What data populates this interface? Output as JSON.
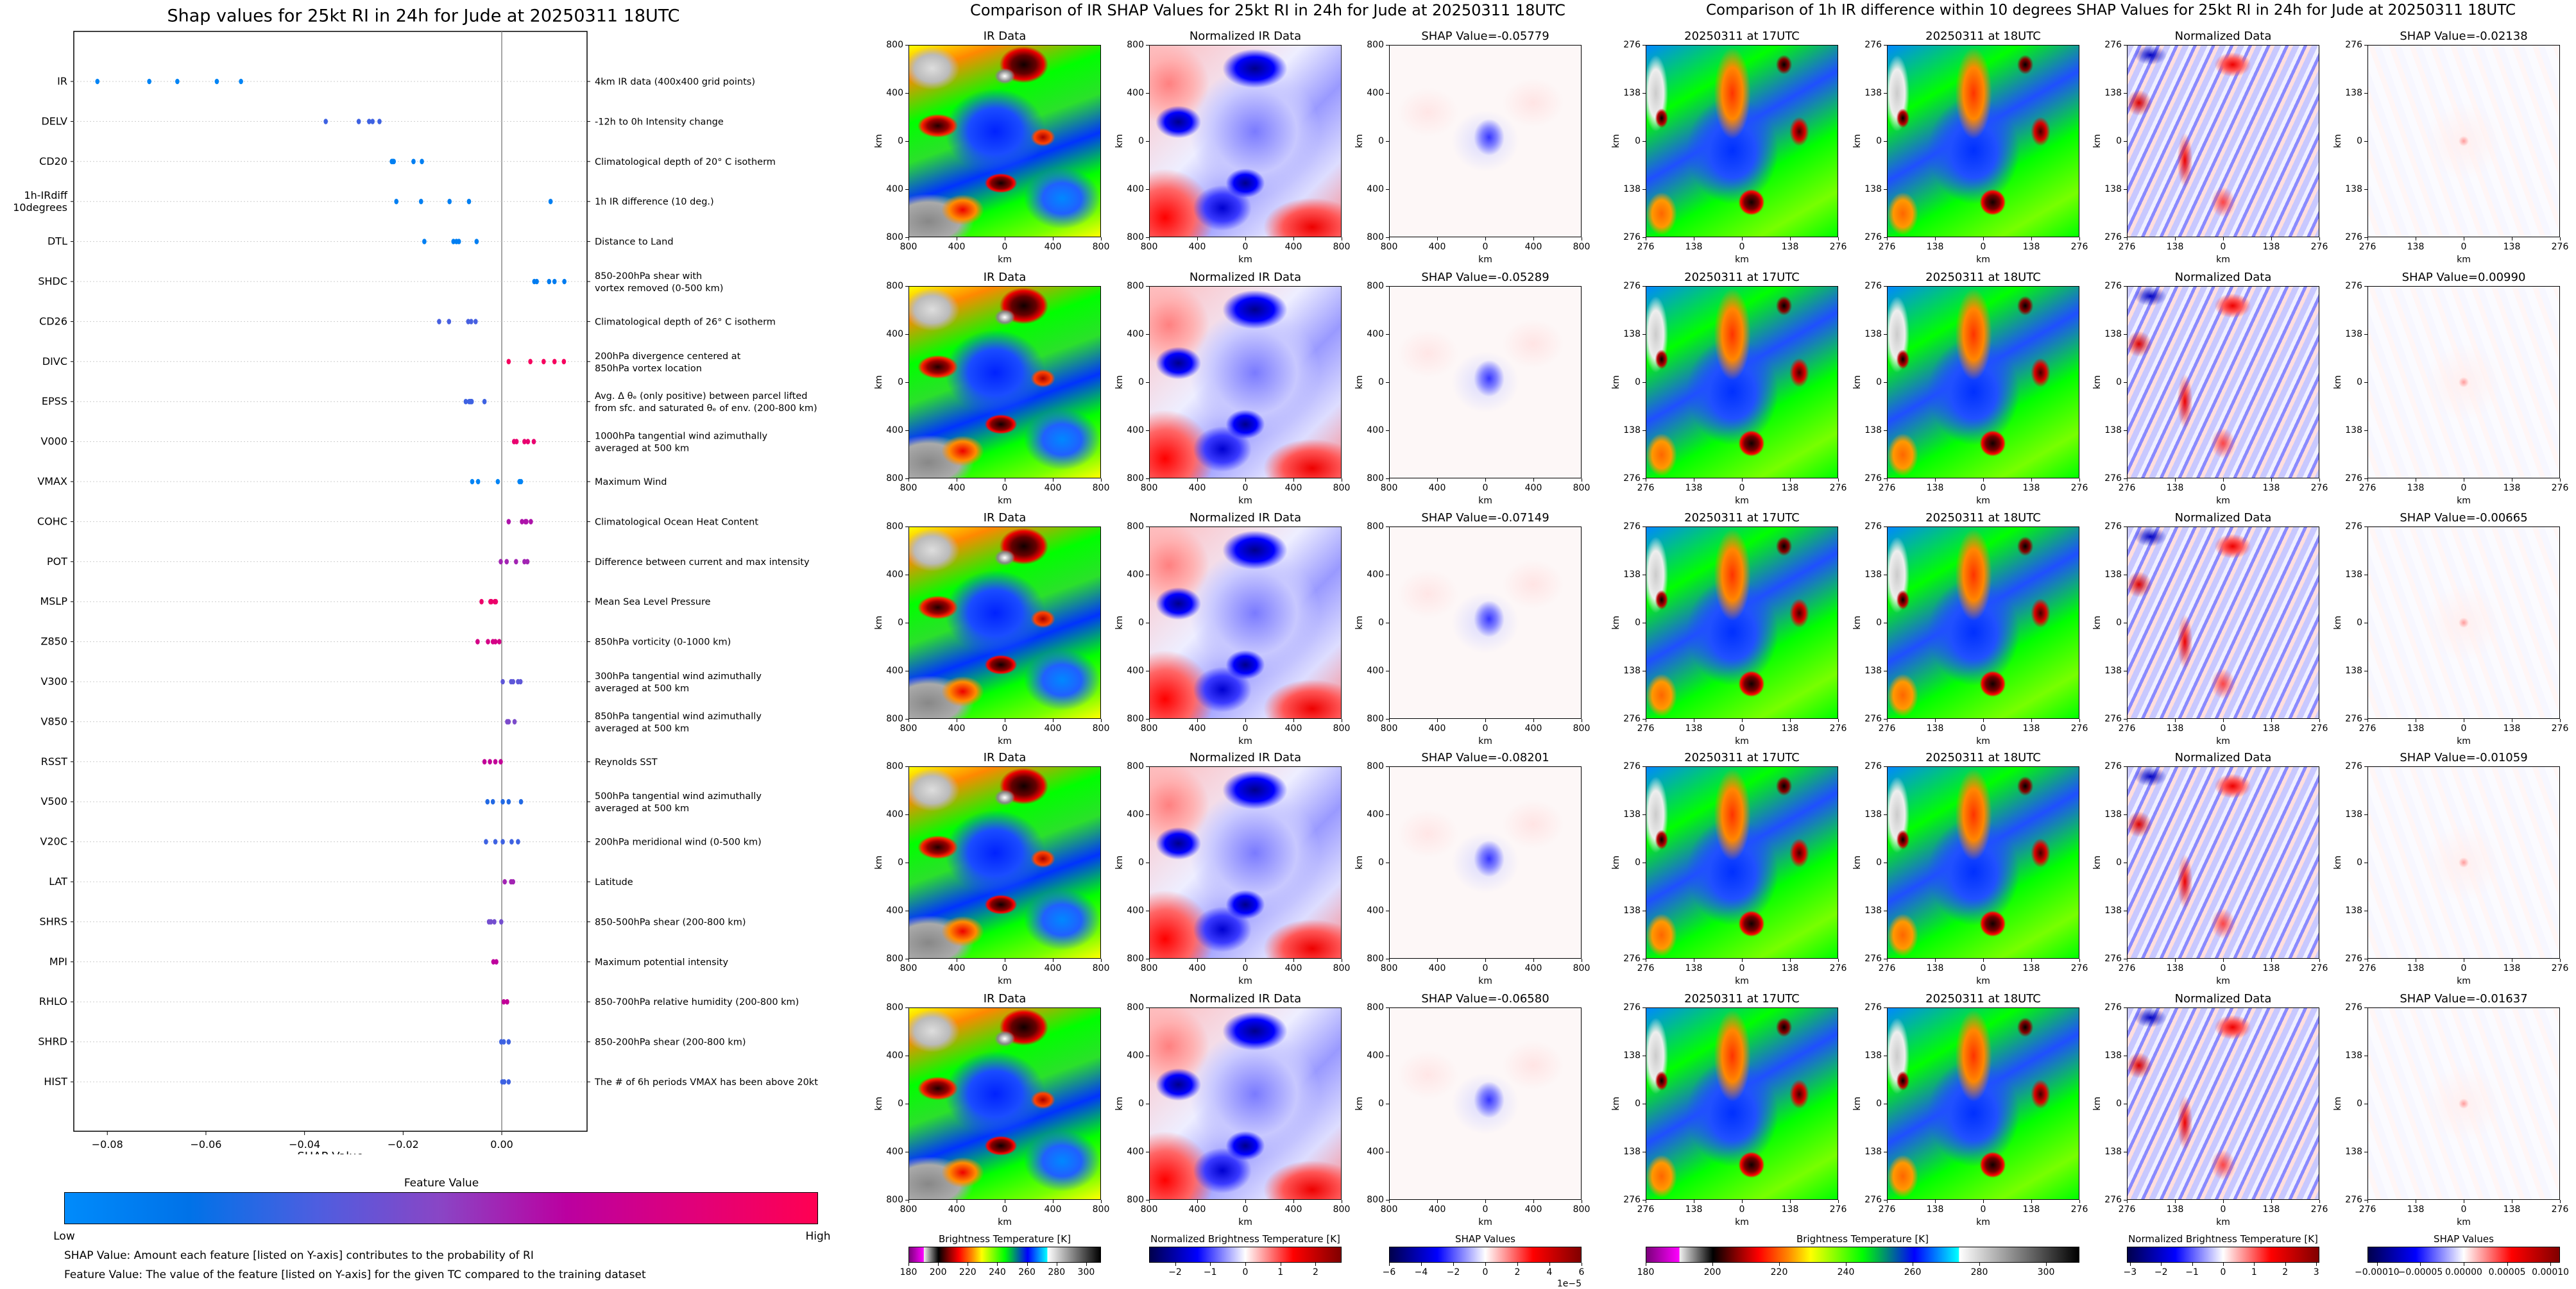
{
  "chart_data": [
    {
      "type": "scatter",
      "title": "Shap values for 25kt RI in 24h for Jude at 20250311 18UTC",
      "xlabel": "SHAP Value",
      "xlim": [
        -0.0868,
        0.0173
      ],
      "xticks": [
        -0.08,
        -0.06,
        -0.04,
        -0.02,
        0.0
      ],
      "xtick_labels": [
        "−0.08",
        "−0.06",
        "−0.04",
        "−0.02",
        "0.00"
      ],
      "zero_line": 0,
      "grid": "horizontal dotted",
      "colorbar": {
        "title": "Feature Value",
        "low": "Low",
        "high": "High",
        "colors": [
          "#008bfb",
          "#0072e8",
          "#4d5ee0",
          "#8a45c5",
          "#bb00a0",
          "#e0007a",
          "#ff0052"
        ]
      },
      "features": [
        {
          "name": "IR",
          "description": "4km IR data (400x400 grid points)",
          "feature_value": 0.05,
          "shap_values": [
            -0.05779,
            -0.05289,
            -0.07149,
            -0.08201,
            -0.0658
          ]
        },
        {
          "name": "DELV",
          "description": "-12h to 0h Intensity change",
          "feature_value": 0.3,
          "shap_values": [
            -0.0357,
            -0.029,
            -0.0269,
            -0.0262,
            -0.0248
          ]
        },
        {
          "name": "CD20",
          "description": "Climatological depth of 20° C isotherm",
          "feature_value": 0.08,
          "shap_values": [
            -0.0223,
            -0.0221,
            -0.0219,
            -0.0179,
            -0.0162
          ]
        },
        {
          "name": "1h-IRdiff\n10degrees",
          "description": "1h IR difference (10 deg.)",
          "feature_value": 0.08,
          "shap_values": [
            -0.02138,
            0.0099,
            -0.00665,
            -0.01059,
            -0.01637
          ]
        },
        {
          "name": "DTL",
          "description": "Distance to Land",
          "feature_value": 0.08,
          "shap_values": [
            -0.0157,
            -0.0098,
            -0.0092,
            -0.0087,
            -0.0051
          ]
        },
        {
          "name": "SHDC",
          "description": "850-200hPa shear with\nvortex removed (0-500 km)",
          "feature_value": 0.1,
          "shap_values": [
            0.0066,
            0.0071,
            0.0096,
            0.0107,
            0.0127
          ]
        },
        {
          "name": "CD26",
          "description": "Climatological depth of 26° C isotherm",
          "feature_value": 0.32,
          "shap_values": [
            -0.0127,
            -0.0107,
            -0.0068,
            -0.0062,
            -0.0053
          ]
        },
        {
          "name": "DIVC",
          "description": "200hPa divergence centered at\n850hPa vortex location",
          "feature_value": 0.95,
          "shap_values": [
            0.0014,
            0.0058,
            0.0085,
            0.0107,
            0.0126
          ]
        },
        {
          "name": "EPSS",
          "description": "Avg. Δ θₑ (only positive) between parcel lifted\nfrom sfc. and saturated θₑ of env. (200-800 km)",
          "feature_value": 0.3,
          "shap_values": [
            -0.0073,
            -0.0066,
            -0.0063,
            -0.0061,
            -0.0035
          ]
        },
        {
          "name": "V000",
          "description": "1000hPa tangential wind azimuthally\naveraged at 500 km",
          "feature_value": 0.88,
          "shap_values": [
            0.0025,
            0.003,
            0.0046,
            0.0053,
            0.0065
          ]
        },
        {
          "name": "VMAX",
          "description": "Maximum Wind",
          "feature_value": 0.05,
          "shap_values": [
            -0.006,
            -0.0048,
            -0.0008,
            0.0036,
            0.0039
          ]
        },
        {
          "name": "COHC",
          "description": "Climatological Ocean Heat Content",
          "feature_value": 0.62,
          "shap_values": [
            0.0014,
            0.0041,
            0.0048,
            0.005,
            0.0059
          ]
        },
        {
          "name": "POT",
          "description": "Difference between current and max intensity",
          "feature_value": 0.58,
          "shap_values": [
            -0.0002,
            0.001,
            0.0029,
            0.0046,
            0.0052
          ]
        },
        {
          "name": "MSLP",
          "description": "Mean Sea Level Pressure",
          "feature_value": 0.9,
          "shap_values": [
            -0.0041,
            -0.0023,
            -0.0021,
            -0.0014,
            -0.0012
          ]
        },
        {
          "name": "Z850",
          "description": "850hPa vorticity (0-1000 km)",
          "feature_value": 0.78,
          "shap_values": [
            -0.0049,
            -0.0028,
            -0.0018,
            -0.0013,
            -0.0005
          ]
        },
        {
          "name": "V300",
          "description": "300hPa tangential wind azimuthally\naveraged at 500 km",
          "feature_value": 0.38,
          "shap_values": [
            0.0002,
            0.0019,
            0.0023,
            0.0033,
            0.0038
          ]
        },
        {
          "name": "V850",
          "description": "850hPa tangential wind azimuthally\naveraged at 500 km",
          "feature_value": 0.46,
          "shap_values": [
            0.0011,
            0.0014,
            0.0026
          ]
        },
        {
          "name": "RSST",
          "description": "Reynolds SST",
          "feature_value": 0.7,
          "shap_values": [
            -0.0035,
            -0.0024,
            -0.0013,
            -0.0002
          ]
        },
        {
          "name": "V500",
          "description": "500hPa tangential wind azimuthally\naveraged at 500 km",
          "feature_value": 0.24,
          "shap_values": [
            -0.0029,
            -0.0018,
            0.0002,
            0.0014,
            0.0039
          ]
        },
        {
          "name": "V20C",
          "description": "200hPa meridional wind (0-500 km)",
          "feature_value": 0.3,
          "shap_values": [
            -0.0032,
            -0.0013,
            0.0002,
            0.002,
            0.0033
          ]
        },
        {
          "name": "LAT",
          "description": "Latitude",
          "feature_value": 0.58,
          "shap_values": [
            0.0006,
            0.0019,
            0.0023
          ]
        },
        {
          "name": "SHRS",
          "description": "850-500hPa shear (200-800 km)",
          "feature_value": 0.44,
          "shap_values": [
            -0.0026,
            -0.0022,
            -0.0015,
            -0.0001
          ]
        },
        {
          "name": "MPI",
          "description": "Maximum potential intensity",
          "feature_value": 0.68,
          "shap_values": [
            -0.0017,
            -0.0011
          ]
        },
        {
          "name": "RHLO",
          "description": "850-700hPa relative humidity (200-800 km)",
          "feature_value": 0.7,
          "shap_values": [
            0.0004,
            0.0011
          ]
        },
        {
          "name": "SHRD",
          "description": "850-200hPa shear (200-800 km)",
          "feature_value": 0.3,
          "shap_values": [
            -0.0001,
            0.0004,
            0.0014
          ]
        },
        {
          "name": "HIST",
          "description": "The # of 6h periods VMAX has been above 20kt",
          "feature_value": 0.3,
          "shap_values": [
            0.0001,
            0.0005,
            0.0014
          ]
        }
      ],
      "notes": [
        "SHAP Value: Amount each feature [listed on Y-axis] contributes to the probability of RI",
        "Feature Value: The value of the feature [listed on Y-axis] for the given TC compared to the training dataset"
      ]
    },
    {
      "type": "heatmap",
      "title": "Comparison of IR SHAP Values for 25kt RI in 24h for Jude at 20250311 18UTC",
      "xlabel": "km",
      "ylabel": "km",
      "axis_tick_labels": [
        "800",
        "400",
        "0",
        "400",
        "800"
      ],
      "columns": [
        {
          "title": "IR Data",
          "style": "ir"
        },
        {
          "title": "Normalized IR Data",
          "style": "norm"
        },
        {
          "title": "",
          "style": "shapm"
        }
      ],
      "shap_titles": [
        "SHAP Value=-0.05779",
        "SHAP Value=-0.05289",
        "SHAP Value=-0.07149",
        "SHAP Value=-0.08201",
        "SHAP Value=-0.06580"
      ],
      "colorbars": [
        {
          "label": "Brightness Temperature [K]",
          "range": [
            180,
            310
          ],
          "ticks": [
            180,
            200,
            220,
            240,
            260,
            280,
            300
          ],
          "tick_labels": [
            "180",
            "200",
            "220",
            "240",
            "260",
            "280",
            "300"
          ],
          "colormap": "brightness-temperature"
        },
        {
          "label": "Normalized Brightness Temperature [K]",
          "range": [
            -2.74,
            2.74
          ],
          "ticks": [
            -2,
            -1,
            0,
            1,
            2
          ],
          "tick_labels": [
            "−2",
            "−1",
            "0",
            "1",
            "2"
          ],
          "colormap": "seismic"
        },
        {
          "label": "SHAP Values",
          "range": [
            -6,
            6
          ],
          "ticks": [
            -6,
            -4,
            -2,
            0,
            2,
            4,
            6
          ],
          "tick_labels": [
            "−6",
            "−4",
            "−2",
            "0",
            "2",
            "4",
            "6"
          ],
          "offset_text": "1e−5",
          "colormap": "seismic"
        }
      ]
    },
    {
      "type": "heatmap",
      "title": "Comparison of 1h IR difference within 10 degrees SHAP Values for 25kt RI in 24h for Jude at 20250311 18UTC",
      "xlabel": "km",
      "ylabel": "km",
      "axis_tick_labels": [
        "276",
        "138",
        "0",
        "138",
        "276"
      ],
      "columns": [
        {
          "title": "20250311 at 17UTC",
          "style": "ir2"
        },
        {
          "title": "20250311 at 18UTC",
          "style": "ir2"
        },
        {
          "title": "Normalized Data",
          "style": "norm2"
        },
        {
          "title": "",
          "style": "shap2"
        }
      ],
      "shap_titles": [
        "SHAP Value=-0.02138",
        "SHAP Value=0.00990",
        "SHAP Value=-0.00665",
        "SHAP Value=-0.01059",
        "SHAP Value=-0.01637"
      ],
      "colorbars": [
        {
          "label": "Brightness Temperature [K]",
          "range": [
            180,
            310
          ],
          "ticks": [
            180,
            200,
            220,
            240,
            260,
            280,
            300
          ],
          "tick_labels": [
            "180",
            "200",
            "220",
            "240",
            "260",
            "280",
            "300"
          ],
          "colormap": "brightness-temperature"
        },
        {
          "label": "Normalized Brightness Temperature [K]",
          "range": [
            -3.1,
            3.1
          ],
          "ticks": [
            -3,
            -2,
            -1,
            0,
            1,
            2,
            3
          ],
          "tick_labels": [
            "−3",
            "−2",
            "−1",
            "0",
            "1",
            "2",
            "3"
          ],
          "colormap": "seismic"
        },
        {
          "label": "SHAP Values",
          "range": [
            -0.000111,
            0.000111
          ],
          "ticks": [
            -0.0001,
            -5e-05,
            0,
            5e-05,
            0.0001
          ],
          "tick_labels": [
            "−0.00010",
            "−0.00005",
            "0.00000",
            "0.00005",
            "0.00010"
          ],
          "colormap": "seismic"
        }
      ]
    }
  ],
  "colormaps": {
    "brightness-temperature": "linear-gradient(90deg,#7b007b 0%,#ff00ff 7.6%,#f0f0f0 7.7%,#000 15.4%,#8b0000 21%,#ff0000 26%,#ff8c00 33%,#ffff00 38%,#00ff00 50%,#0000ff 62%,#00ffff 72.2%,#ffffff 72.4%,#000 100%)",
    "seismic": "linear-gradient(90deg,#00004c 0%,#0000ff 25%,#ffffff 50%,#ff0000 75%,#800000 100%)"
  }
}
